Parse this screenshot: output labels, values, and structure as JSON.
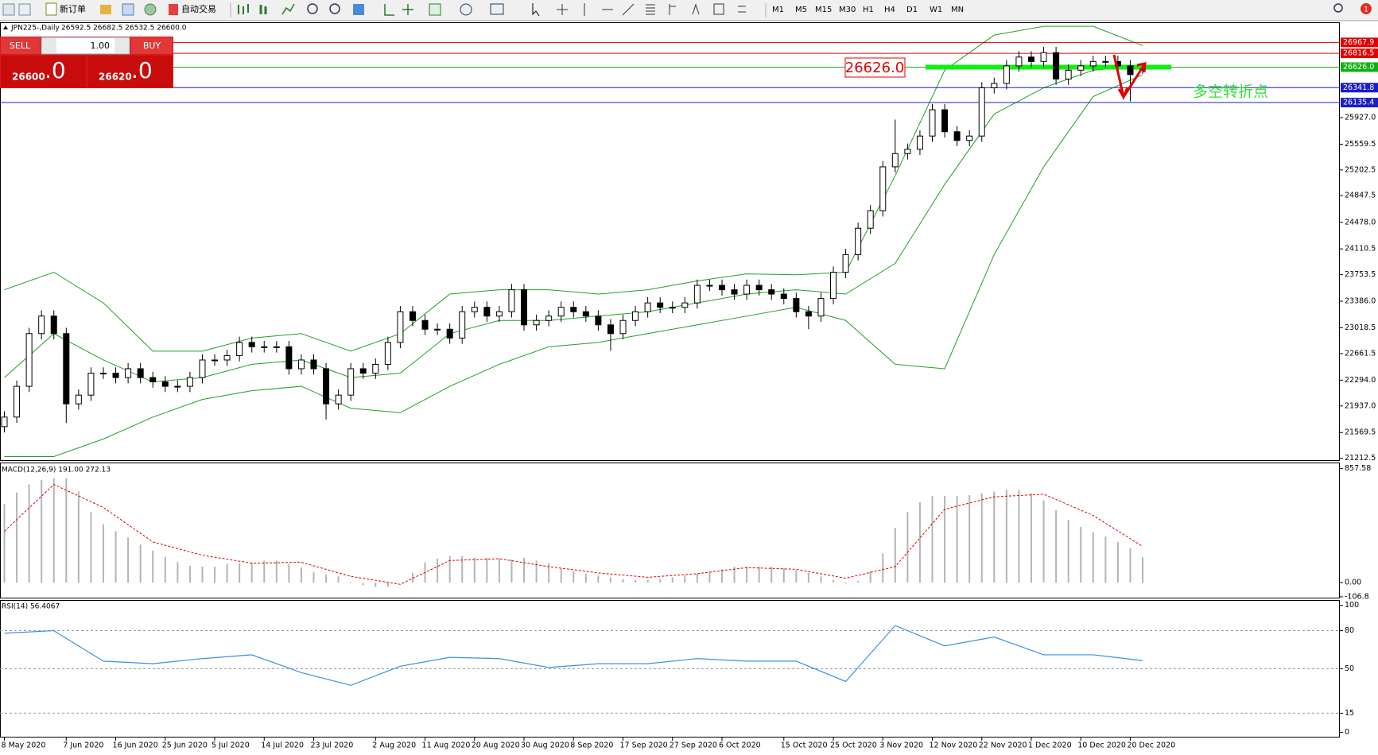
{
  "toolbar": {
    "new_order": "新订单",
    "auto_trading": "自动交易",
    "timeframes": [
      "M1",
      "M5",
      "M15",
      "M30",
      "H1",
      "H4",
      "D1",
      "W1",
      "MN"
    ],
    "notifications": "1"
  },
  "trade_panel": {
    "sell": "SELL",
    "buy": "BUY",
    "volume": "1.00",
    "bid_main": "26600",
    "bid_frac": ".0",
    "ask_main": "26620",
    "ask_frac": ".0"
  },
  "chart_data": [
    {
      "type": "candlestick",
      "title": "JPN225-,Daily",
      "subtitle": "26592.5 26682.5 26532.5 26600.0",
      "annotation_price": "26626.0",
      "annotation_text": "多空转折点",
      "categories": [
        "8 May 2020",
        null,
        null,
        null,
        null,
        "7 Jun 2020",
        null,
        null,
        null,
        "16 Jun 2020",
        null,
        null,
        null,
        "25 Jun 2020",
        null,
        null,
        null,
        "5 Jul 2020",
        null,
        null,
        null,
        "14 Jul 2020",
        null,
        null,
        null,
        "23 Jul 2020",
        null,
        null,
        null,
        null,
        "2 Aug 2020",
        null,
        null,
        null,
        "11 Aug 2020",
        null,
        null,
        null,
        "20 Aug 2020",
        null,
        null,
        null,
        "30 Aug 2020",
        null,
        null,
        null,
        "8 Sep 2020",
        null,
        null,
        null,
        "17 Sep 2020",
        null,
        null,
        null,
        "27 Sep 2020",
        null,
        null,
        null,
        "6 Oct 2020",
        null,
        null,
        null,
        null,
        "15 Oct 2020",
        null,
        null,
        null,
        "25 Oct 2020",
        null,
        null,
        null,
        "3 Nov 2020",
        null,
        null,
        null,
        "12 Nov 2020",
        null,
        null,
        null,
        "22 Nov 2020",
        null,
        null,
        null,
        "1 Dec 2020",
        null,
        null,
        null,
        "10 Dec 2020",
        null,
        null,
        null,
        "20 Dec 2020",
        null
      ],
      "open": [
        21650,
        21783,
        22209,
        22938,
        23181,
        22938,
        21966,
        22087,
        22391,
        22391,
        22330,
        22452,
        22330,
        22270,
        22209,
        22209,
        22330,
        22573,
        22573,
        22634,
        22816,
        22756,
        22756,
        22756,
        22452,
        22573,
        22452,
        21966,
        22087,
        22452,
        22391,
        22513,
        22816,
        23241,
        23120,
        22999,
        22999,
        22877,
        23241,
        23302,
        23181,
        23241,
        23545,
        23059,
        23120,
        23181,
        23302,
        23241,
        23181,
        23059,
        22938,
        23120,
        23241,
        23363,
        23302,
        23302,
        23363,
        23606,
        23606,
        23545,
        23485,
        23606,
        23545,
        23485,
        23424,
        23241,
        23181,
        23424,
        23788,
        24031,
        24396,
        24639,
        25246,
        25429,
        25489,
        25672,
        26036,
        25732,
        25611,
        25672,
        26340,
        26400,
        26643,
        26765,
        26704,
        26826,
        26461,
        26583,
        26643,
        26704,
        26704,
        26643,
        26592.5
      ],
      "high": [
        21863,
        22289,
        23018,
        23261,
        23261,
        23018,
        22167,
        22471,
        22471,
        22471,
        22532,
        22532,
        22410,
        22350,
        22289,
        22410,
        22653,
        22653,
        22714,
        22896,
        22896,
        22836,
        22836,
        22836,
        22653,
        22653,
        22532,
        22167,
        22532,
        22532,
        22593,
        22896,
        23321,
        23321,
        23200,
        23079,
        23079,
        23321,
        23382,
        23382,
        23321,
        23625,
        23625,
        23200,
        23261,
        23382,
        23382,
        23321,
        23261,
        23139,
        23200,
        23321,
        23443,
        23443,
        23382,
        23443,
        23686,
        23686,
        23686,
        23625,
        23686,
        23686,
        23625,
        23565,
        23504,
        23321,
        23504,
        23868,
        24111,
        24476,
        24719,
        25326,
        25900,
        25569,
        25752,
        26116,
        26116,
        25812,
        25752,
        26420,
        26480,
        26723,
        26845,
        26845,
        26906,
        26906,
        26663,
        26723,
        26784,
        26784,
        26784,
        26723,
        26682.5
      ],
      "low": [
        21570,
        21703,
        22129,
        22858,
        22858,
        21700,
        21886,
        22007,
        22311,
        22250,
        22250,
        22250,
        22190,
        22129,
        22129,
        22129,
        22250,
        22493,
        22493,
        22554,
        22676,
        22676,
        22676,
        22372,
        22372,
        22372,
        21750,
        21886,
        22007,
        22311,
        22311,
        22433,
        22736,
        23040,
        22919,
        22919,
        22797,
        22797,
        23161,
        23101,
        23101,
        23161,
        22979,
        22979,
        23040,
        23101,
        23161,
        23101,
        22979,
        22700,
        22858,
        23040,
        23161,
        23222,
        23222,
        23222,
        23283,
        23526,
        23465,
        23405,
        23405,
        23465,
        23405,
        23344,
        23161,
        23000,
        23101,
        23344,
        23708,
        23951,
        24316,
        24559,
        25166,
        25349,
        25409,
        25592,
        25652,
        25531,
        25531,
        25592,
        26260,
        26320,
        26563,
        26624,
        26624,
        26381,
        26381,
        26503,
        26563,
        26624,
        26563,
        26150,
        26532.5
      ],
      "close": [
        21783,
        22209,
        22938,
        23181,
        22938,
        21966,
        22087,
        22391,
        22391,
        22330,
        22452,
        22330,
        22270,
        22209,
        22209,
        22330,
        22573,
        22573,
        22634,
        22816,
        22756,
        22756,
        22756,
        22452,
        22573,
        22452,
        21966,
        22087,
        22452,
        22391,
        22513,
        22816,
        23241,
        23120,
        22999,
        22999,
        22877,
        23241,
        23302,
        23181,
        23241,
        23545,
        23059,
        23120,
        23181,
        23302,
        23241,
        23181,
        23059,
        22938,
        23120,
        23241,
        23363,
        23302,
        23302,
        23363,
        23606,
        23606,
        23545,
        23485,
        23606,
        23545,
        23485,
        23424,
        23241,
        23181,
        23424,
        23788,
        24031,
        24396,
        24639,
        25246,
        25429,
        25489,
        25672,
        26036,
        25732,
        25611,
        25672,
        26340,
        26400,
        26643,
        26765,
        26704,
        26826,
        26461,
        26583,
        26643,
        26704,
        26704,
        26643,
        26522,
        26600
      ],
      "bollinger": {
        "color": "#22a022",
        "upper": [
          23545,
          23788,
          23363,
          22695,
          22695,
          22877,
          22938,
          22695,
          22938,
          23485,
          23545,
          23545,
          23485,
          23545,
          23667,
          23764,
          23752,
          23788,
          25125,
          26583,
          27069,
          27190,
          27190,
          26923
        ],
        "middle": [
          22330,
          22938,
          22573,
          22270,
          22330,
          22513,
          22573,
          22330,
          22391,
          22938,
          23120,
          23120,
          23181,
          23241,
          23363,
          23485,
          23545,
          23485,
          23910,
          25004,
          25976,
          26340,
          26583,
          26643
        ],
        "lower": [
          21237,
          21237,
          21480,
          21783,
          22027,
          22148,
          22209,
          21905,
          21844,
          22209,
          22513,
          22756,
          22816,
          22938,
          23059,
          23181,
          23302,
          23120,
          22513,
          22452,
          24032,
          25246,
          26218,
          26522
        ]
      },
      "levels": [
        {
          "value": 26967.9,
          "label": "26967.9",
          "color": "#e00000"
        },
        {
          "value": 26816.5,
          "label": "26816.5",
          "color": "#e00000"
        },
        {
          "value": 26626.0,
          "label": "26626.0",
          "color": "#12b012"
        },
        {
          "value": 26341.8,
          "label": "26341.8",
          "color": "#1c1cc8"
        },
        {
          "value": 26135.4,
          "label": "26135.4",
          "color": "#1c1cc8"
        }
      ],
      "ylim": [
        21176,
        27239
      ],
      "yticks": [
        21212.5,
        21569.5,
        {
          "value": 21937.0,
          "label": "21937.0"
        },
        {
          "value": 22294.0,
          "label": "22294.0"
        },
        22661.5,
        23018.5,
        {
          "value": 23386.0,
          "label": "23386.0"
        },
        23753.5,
        24110.5,
        {
          "value": 24478.0,
          "label": "24478.0"
        },
        24847.5,
        25202.5,
        25559.5,
        {
          "value": 25927.0,
          "label": "25927.0"
        }
      ],
      "grid": false
    },
    {
      "type": "macd",
      "title": "MACD(12,26,9) 191.00 272.13",
      "histogram_color": "#b4b4b4",
      "signal_color": "#e00000",
      "histogram": [
        592,
        678,
        738,
        771,
        785,
        785,
        685,
        532,
        439,
        386,
        339,
        286,
        239,
        193,
        153,
        126,
        120,
        120,
        140,
        146,
        153,
        166,
        166,
        140,
        113,
        80,
        60,
        47,
        7,
        -20,
        -33,
        -33,
        0,
        73,
        153,
        180,
        200,
        200,
        186,
        186,
        180,
        173,
        186,
        166,
        146,
        106,
        86,
        67,
        53,
        40,
        27,
        20,
        20,
        27,
        40,
        53,
        67,
        80,
        100,
        120,
        120,
        120,
        120,
        106,
        93,
        73,
        47,
        20,
        -7,
        13,
        86,
        219,
        412,
        532,
        605,
        652,
        652,
        652,
        658,
        672,
        685,
        698,
        698,
        672,
        618,
        545,
        472,
        419,
        379,
        346,
        306,
        259,
        191
      ],
      "signal": [
        386,
        738,
        565,
        306,
        206,
        146,
        153,
        47,
        -13,
        166,
        180,
        120,
        73,
        40,
        67,
        113,
        100,
        33,
        120,
        552,
        645,
        665,
        505,
        272
      ],
      "ylim": [
        -113,
        897
      ],
      "yticks": [
        857.58,
        {
          "value": 0,
          "label": "0.00"
        },
        -106.8
      ]
    },
    {
      "type": "line",
      "title": "RSI(14) 56.4067",
      "color": "#3a8fe8",
      "values": [
        78,
        80,
        56,
        54,
        58,
        61,
        47,
        37,
        52,
        59,
        58,
        51,
        54,
        54,
        58,
        56,
        56,
        40,
        84,
        68,
        75,
        61,
        61,
        56.4067
      ],
      "levels": [
        80,
        50,
        15
      ],
      "ylim": [
        -3.5,
        103.5
      ],
      "yticks": [
        100,
        80,
        50,
        15,
        0
      ]
    }
  ]
}
